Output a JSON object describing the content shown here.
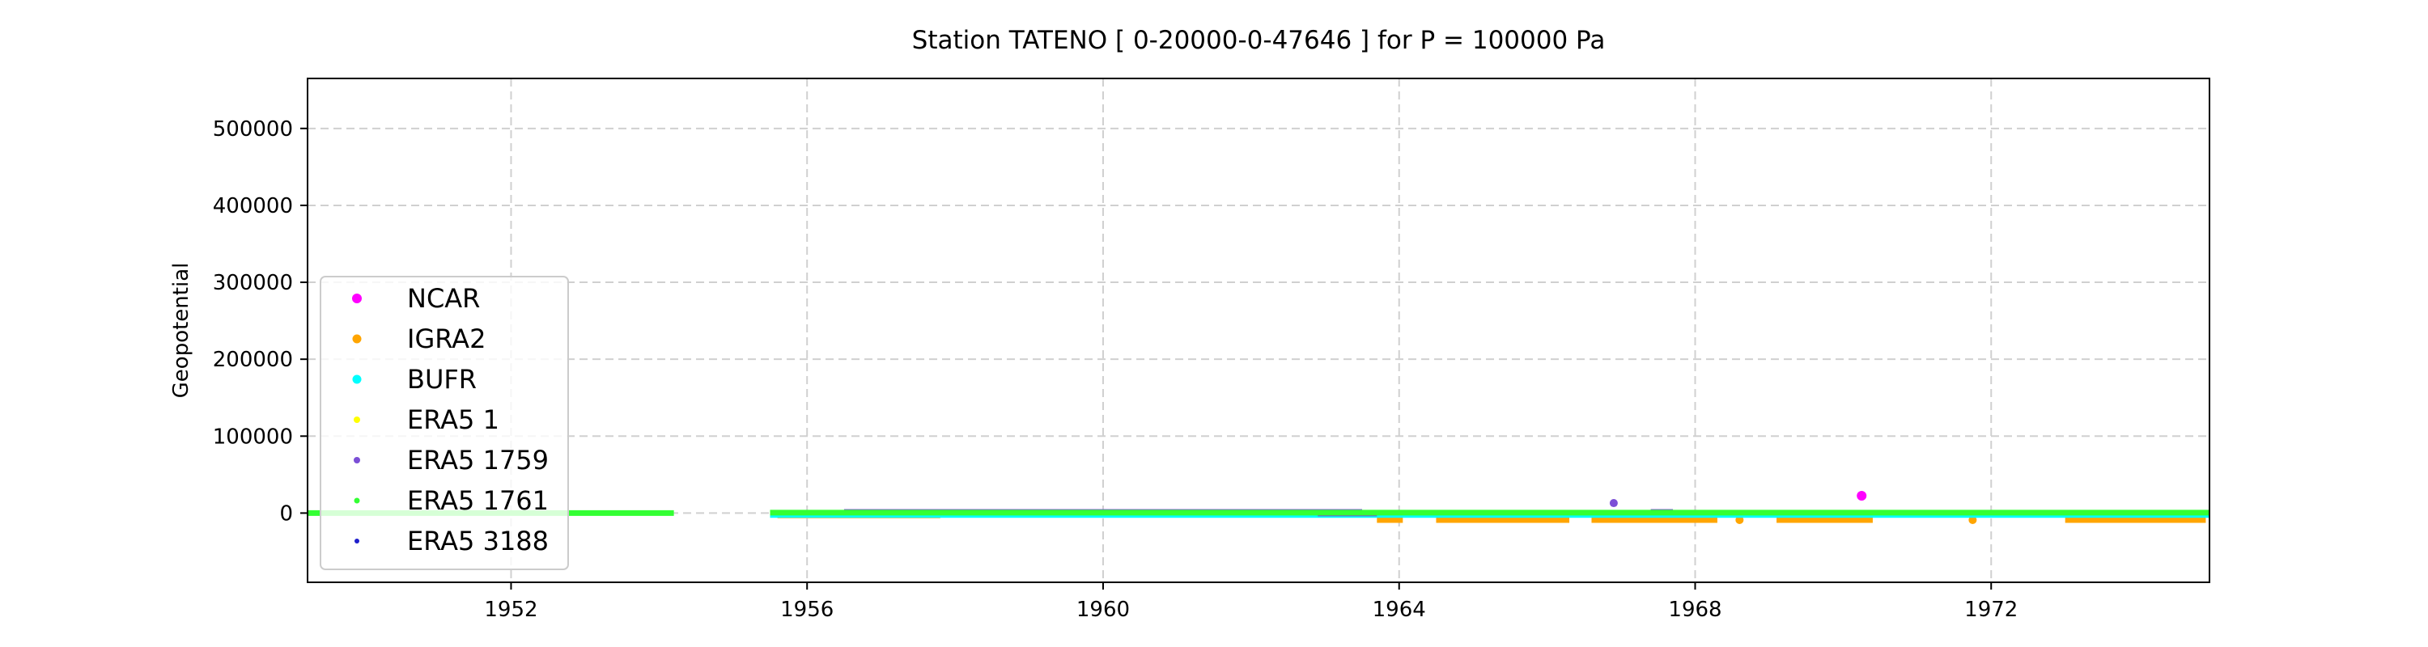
{
  "chart_data": {
    "type": "scatter",
    "title": "Station  TATENO [ 0-20000-0-47646 ]  for P = 100000 Pa",
    "xlabel": "",
    "ylabel": "Geopotential",
    "xlim": [
      1949.25,
      1974.95
    ],
    "ylim": [
      -90000,
      565000
    ],
    "xticks": [
      1952,
      1956,
      1960,
      1964,
      1968,
      1972
    ],
    "xtick_labels": [
      "1952",
      "1956",
      "1960",
      "1964",
      "1968",
      "1972"
    ],
    "yticks": [
      0,
      100000,
      200000,
      300000,
      400000,
      500000
    ],
    "ytick_labels": [
      "0",
      "100000",
      "200000",
      "300000",
      "400000",
      "500000"
    ],
    "grid": true,
    "legend_position": "lower-left",
    "series": [
      {
        "name": "NCAR",
        "color": "#ff00ff",
        "segments": [],
        "points": [
          [
            1970.25,
            22500
          ]
        ]
      },
      {
        "name": "IGRA2",
        "color": "#ffa500",
        "segments": [
          [
            1955.6,
            1957.8,
            -3000
          ],
          [
            1963.7,
            1964.05,
            -9000
          ],
          [
            1964.5,
            1966.3,
            -9000
          ],
          [
            1966.6,
            1968.3,
            -9000
          ],
          [
            1969.1,
            1970.4,
            -9000
          ],
          [
            1973.0,
            1974.9,
            -9000
          ]
        ],
        "points": [
          [
            1971.75,
            -9000
          ],
          [
            1968.6,
            -9000
          ]
        ]
      },
      {
        "name": "BUFR",
        "color": "#00ffff",
        "segments": [
          [
            1955.5,
            1974.95,
            -2500
          ]
        ],
        "points": []
      },
      {
        "name": "ERA5 1",
        "color": "#ffff00",
        "segments": [],
        "points": []
      },
      {
        "name": "ERA5 1759",
        "color": "#7b4fd6",
        "segments": [
          [
            1956.5,
            1963.5,
            1500
          ],
          [
            1962.9,
            1963.7,
            -500
          ],
          [
            1967.4,
            1967.7,
            1500
          ]
        ],
        "points": [
          [
            1966.9,
            13000
          ]
        ]
      },
      {
        "name": "ERA5 1761",
        "color": "#33ff33",
        "segments": [
          [
            1949.25,
            1954.2,
            0
          ],
          [
            1955.5,
            1974.95,
            500
          ]
        ],
        "points": []
      },
      {
        "name": "ERA5 3188",
        "color": "#1f1fcc",
        "segments": [],
        "points": []
      }
    ]
  }
}
